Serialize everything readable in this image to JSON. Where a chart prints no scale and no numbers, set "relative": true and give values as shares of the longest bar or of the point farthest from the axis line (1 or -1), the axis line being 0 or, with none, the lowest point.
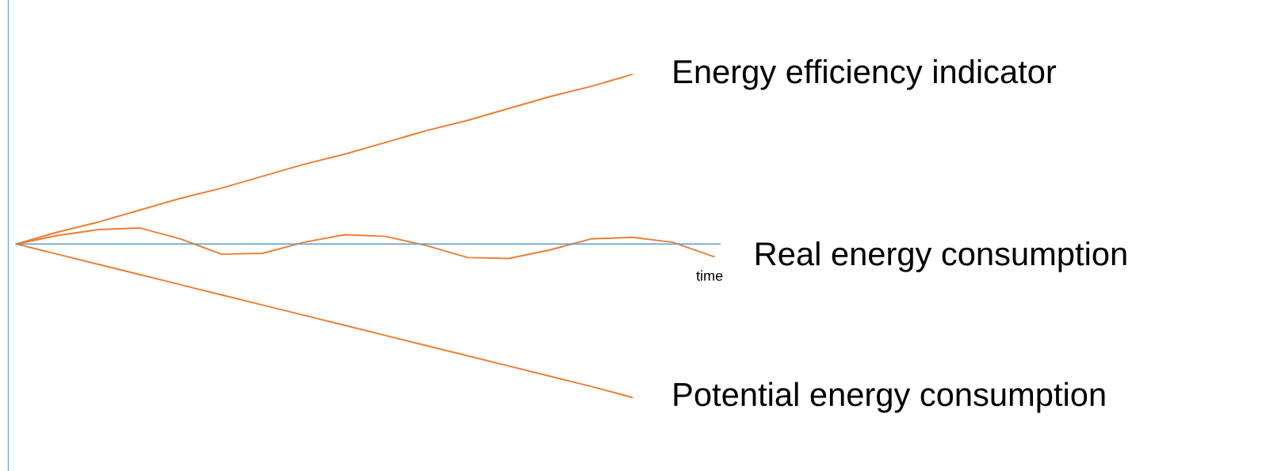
{
  "chart_data": {
    "type": "line",
    "relative": true,
    "xlabel": "time",
    "legend": false,
    "ref_lines": [
      {
        "axis": "y",
        "value": 0,
        "color": "#5b9bd5"
      }
    ],
    "categories": [
      null,
      null,
      null,
      null,
      null,
      null,
      null,
      null,
      null,
      null,
      null,
      null,
      null,
      null,
      null,
      null,
      null,
      null
    ],
    "series": [
      {
        "name": "Energy efficiency indicator",
        "color": "#ed7d31",
        "values": [
          0,
          0.07,
          0.13,
          0.2,
          0.27,
          0.33,
          0.4,
          0.47,
          0.53,
          0.6,
          0.67,
          0.73,
          0.8,
          0.87,
          0.93,
          1,
          null,
          null
        ]
      },
      {
        "name": "Real energy consumption",
        "color": "#ed7d31",
        "values": [
          0,
          0.05,
          0.085,
          0.095,
          0.03,
          -0.06,
          -0.055,
          0.01,
          0.055,
          0.045,
          -0.01,
          -0.08,
          -0.085,
          -0.035,
          0.03,
          0.04,
          0.01,
          -0.075
        ]
      },
      {
        "name": "Potential energy consumption",
        "color": "#ed7d31",
        "values": [
          0,
          -0.06,
          -0.12,
          -0.18,
          -0.24,
          -0.3,
          -0.36,
          -0.42,
          -0.48,
          -0.54,
          -0.6,
          -0.66,
          -0.72,
          -0.78,
          -0.84,
          -0.905,
          null,
          null
        ]
      }
    ]
  }
}
